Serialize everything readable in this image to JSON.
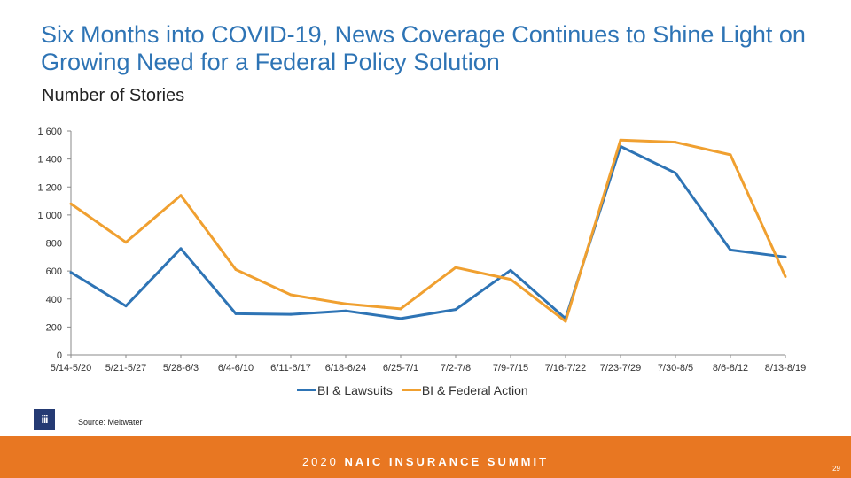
{
  "page": {
    "footer_year": "2020",
    "footer_event": "NAIC INSURANCE SUMMIT",
    "source": "Source: Meltwater",
    "logo_text": "iii",
    "page_number": "29"
  },
  "colors": {
    "series1": "#2e74b5",
    "series2": "#f0a030",
    "footer": "#e87722",
    "axis": "#888888"
  },
  "chart_data": {
    "type": "line",
    "title": "Six Months into COVID-19, News Coverage Continues to Shine Light on Growing Need for a Federal Policy Solution",
    "ylabel": "Number of Stories",
    "xlabel": "",
    "ylim": [
      0,
      1600
    ],
    "yticks": [
      0,
      200,
      400,
      600,
      800,
      1000,
      1200,
      1400,
      1600
    ],
    "ytick_labels": [
      "0",
      "200",
      "400",
      "600",
      "800",
      "1 000",
      "1 200",
      "1 400",
      "1 600"
    ],
    "categories": [
      "5/14-5/20",
      "5/21-5/27",
      "5/28-6/3",
      "6/4-6/10",
      "6/11-6/17",
      "6/18-6/24",
      "6/25-7/1",
      "7/2-7/8",
      "7/9-7/15",
      "7/16-7/22",
      "7/23-7/29",
      "7/30-8/5",
      "8/6-8/12",
      "8/13-8/19"
    ],
    "series": [
      {
        "name": "BI & Lawsuits",
        "values": [
          590,
          350,
          760,
          295,
          290,
          315,
          260,
          325,
          605,
          260,
          1490,
          1300,
          750,
          700
        ]
      },
      {
        "name": "BI & Federal Action",
        "values": [
          1080,
          805,
          1140,
          610,
          430,
          365,
          330,
          625,
          540,
          240,
          1535,
          1520,
          1430,
          560
        ]
      }
    ],
    "legend_position": "bottom"
  }
}
